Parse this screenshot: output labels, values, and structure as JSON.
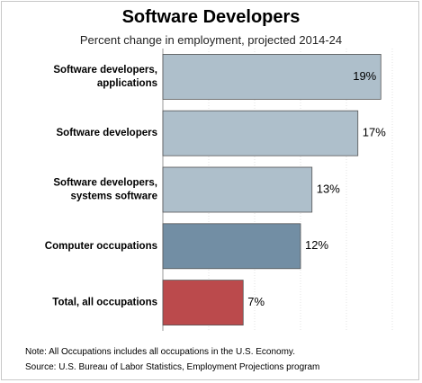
{
  "chart_data": {
    "type": "bar",
    "orientation": "horizontal",
    "title": "Software Developers",
    "subtitle": "Percent change in employment, projected 2014-24",
    "categories": [
      [
        "Software developers,",
        "applications"
      ],
      [
        "Software developers"
      ],
      [
        "Software developers,",
        "systems software"
      ],
      [
        "Computer occupations"
      ],
      [
        "Total, all occupations"
      ]
    ],
    "values": [
      19,
      17,
      13,
      12,
      7
    ],
    "value_labels": [
      "19%",
      "17%",
      "13%",
      "12%",
      "7%"
    ],
    "colors": [
      "#aebfcb",
      "#aebfcb",
      "#aebfcb",
      "#728ea4",
      "#bb4a4c"
    ],
    "xlim": [
      0,
      20
    ],
    "grid": true
  },
  "notes": {
    "note": "Note: All Occupations includes all occupations in the U.S. Economy.",
    "source": "Source: U.S. Bureau of Labor Statistics, Employment Projections program"
  }
}
